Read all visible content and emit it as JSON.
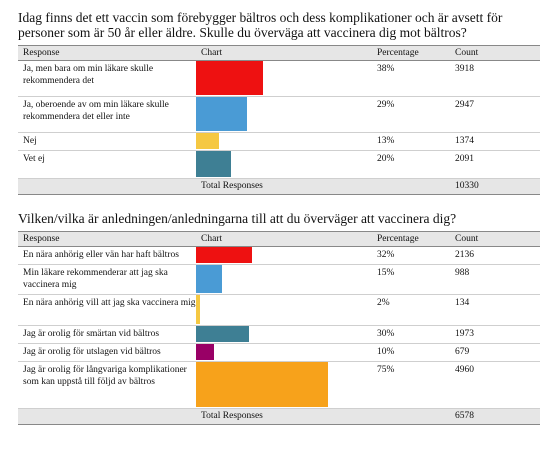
{
  "chart_data": [
    {
      "type": "table",
      "title": "Idag finns det ett vaccin som förebygger bältros och dess komplikationer och är avsett för personer som är 50 år eller äldre. Skulle du överväga att vaccinera dig mot bältros?",
      "headers": [
        "Response",
        "Chart",
        "Percentage",
        "Count"
      ],
      "rows": [
        {
          "response": "Ja, men bara om min läkare skulle rekommendera det",
          "percentage": "38%",
          "value": 38,
          "count": "3918",
          "color": "#ee1111"
        },
        {
          "response": "Ja, oberoende av om min läkare skulle rekommendera det eller inte",
          "percentage": "29%",
          "value": 29,
          "count": "2947",
          "color": "#4a9bd5"
        },
        {
          "response": "Nej",
          "percentage": "13%",
          "value": 13,
          "count": "1374",
          "color": "#f5c842"
        },
        {
          "response": "Vet ej",
          "percentage": "20%",
          "value": 20,
          "count": "2091",
          "color": "#3e7f94"
        }
      ],
      "total_label": "Total Responses",
      "total_count": "10330"
    },
    {
      "type": "table",
      "title": "Vilken/vilka är anledningen/anledningarna till att du överväger att vaccinera dig?",
      "headers": [
        "Response",
        "Chart",
        "Percentage",
        "Count"
      ],
      "rows": [
        {
          "response": "En nära anhörig eller vän har haft bältros",
          "percentage": "32%",
          "value": 32,
          "count": "2136",
          "color": "#ee1111"
        },
        {
          "response": "Min läkare rekommenderar att jag ska vaccinera mig",
          "percentage": "15%",
          "value": 15,
          "count": "988",
          "color": "#4a9bd5"
        },
        {
          "response": "En nära anhörig vill att jag ska vaccinera mig",
          "percentage": "2%",
          "value": 2,
          "count": "134",
          "color": "#f5c842"
        },
        {
          "response": "Jag är orolig för smärtan vid bältros",
          "percentage": "30%",
          "value": 30,
          "count": "1973",
          "color": "#3e7f94"
        },
        {
          "response": "Jag är orolig för utslagen vid bältros",
          "percentage": "10%",
          "value": 10,
          "count": "679",
          "color": "#990066"
        },
        {
          "response": "Jag är orolig för långvariga komplikationer som kan uppstå till följd av bältros",
          "percentage": "75%",
          "value": 75,
          "count": "4960",
          "color": "#f7a21b"
        }
      ],
      "total_label": "Total Responses",
      "total_count": "6578"
    }
  ]
}
